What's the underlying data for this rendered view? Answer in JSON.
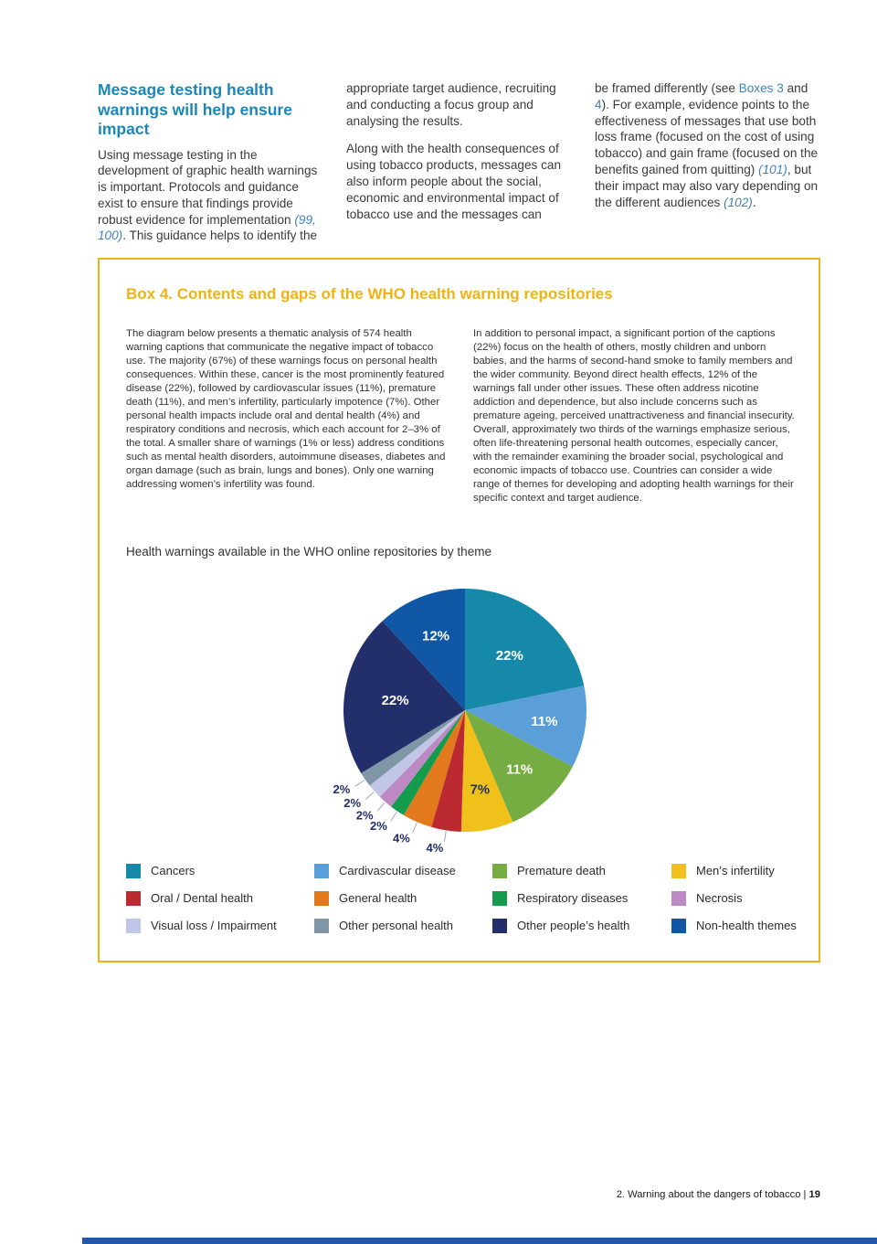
{
  "top": {
    "heading": "Message testing health warnings will help ensure impact",
    "col1_p1": [
      "Using message testing in the development of graphic health warnings is important. Protocols and guidance exist to ensure that findings provide robust evidence for implementation ",
      "(99, 100)",
      ". This guidance helps to identify the"
    ],
    "col2_p1": "appropriate target audience, recruiting and conducting a focus group and analysing the results.",
    "col2_p2": "Along with the health consequences of using tobacco products, messages can also inform people about the social, economic and environmental impact of tobacco use and the messages can",
    "col3_p1": [
      "be framed differently (see ",
      "Boxes 3",
      " and ",
      "4",
      "). For example, evidence points to the effectiveness of messages that use both loss frame (focused on the cost of using tobacco) and gain frame (focused on the benefits gained from quitting) ",
      "(101)",
      ", but their impact may also vary depending on the different audiences ",
      "(102)",
      "."
    ]
  },
  "box4": {
    "title": "Box 4. Contents and gaps of the WHO health warning repositories",
    "left_text": "The diagram below presents a thematic analysis of 574 health warning captions that communicate the negative impact of tobacco use. The majority (67%) of these warnings focus on personal health consequences. Within these, cancer is the most prominently featured disease (22%), followed by cardiovascular issues (11%), premature death (11%), and men’s infertility, particularly impotence (7%). Other personal health impacts include oral and dental health (4%) and respiratory conditions and necrosis, which each account for 2–3% of the total. A smaller share of warnings (1% or less) address conditions such as mental health disorders, autoimmune diseases, diabetes and organ damage (such as brain, lungs and bones). Only one warning addressing women’s infertility was found.",
    "right_text": "In addition to personal impact, a significant portion of the captions (22%) focus on the health of others, mostly children and unborn babies, and the harms of second-hand smoke to family members and the wider community. Beyond direct health effects, 12% of the warnings fall under other issues. These often address nicotine addiction and dependence, but also include concerns such as premature ageing, perceived unattractiveness and financial insecurity. Overall, approximately two thirds of the warnings emphasize serious, often life-threatening personal health outcomes, especially cancer, with the remainder examining the broader social, psychological and economic impacts of tobacco use. Countries can consider a wide range of themes for developing and adopting health warnings for their specific context and target audience."
  },
  "chart_data": {
    "type": "pie",
    "title": "Health warnings available in the WHO online repositories by theme",
    "labels_shown_as": "percent",
    "start_angle": "top",
    "direction": "clockwise",
    "legend_position": "bottom",
    "slices": [
      {
        "label": "Cancers",
        "value": 22,
        "color": "#1689a9",
        "label_inside": true
      },
      {
        "label": "Cardivascular disease",
        "value": 11,
        "color": "#5b9fd8",
        "label_inside": true
      },
      {
        "label": "Premature death",
        "value": 11,
        "color": "#76ad42",
        "label_inside": true
      },
      {
        "label": "Men’s infertility",
        "value": 7,
        "color": "#efc11a",
        "label_inside": true,
        "label_color": "#232f6a"
      },
      {
        "label": "Oral / Dental health",
        "value": 4,
        "color": "#bb2a31",
        "label_inside": false
      },
      {
        "label": "General health",
        "value": 4,
        "color": "#e2791c",
        "label_inside": false
      },
      {
        "label": "Respiratory diseases",
        "value": 2,
        "color": "#149c4c",
        "label_inside": false
      },
      {
        "label": "Necrosis",
        "value": 2,
        "color": "#bd89c5",
        "label_inside": false
      },
      {
        "label": "Visual loss / Impairment",
        "value": 2,
        "color": "#c1c5e6",
        "label_inside": false
      },
      {
        "label": "Other personal health",
        "value": 2,
        "color": "#7e96a6",
        "label_inside": false
      },
      {
        "label": "Other people’s health",
        "value": 22,
        "color": "#232f6a",
        "label_inside": true
      },
      {
        "label": "Non-health themes",
        "value": 12,
        "color": "#1057a6",
        "label_inside": true
      }
    ]
  },
  "footer": {
    "text": "2. Warning about the dangers of tobacco | ",
    "page_number": "19"
  },
  "colors": {
    "heading_blue": "#1b87b9",
    "link_blue": "#4080c0",
    "box_gold": "#f2b213",
    "bottom_bar_blue": "#2257a5",
    "body_text": "#3a3a3a"
  }
}
